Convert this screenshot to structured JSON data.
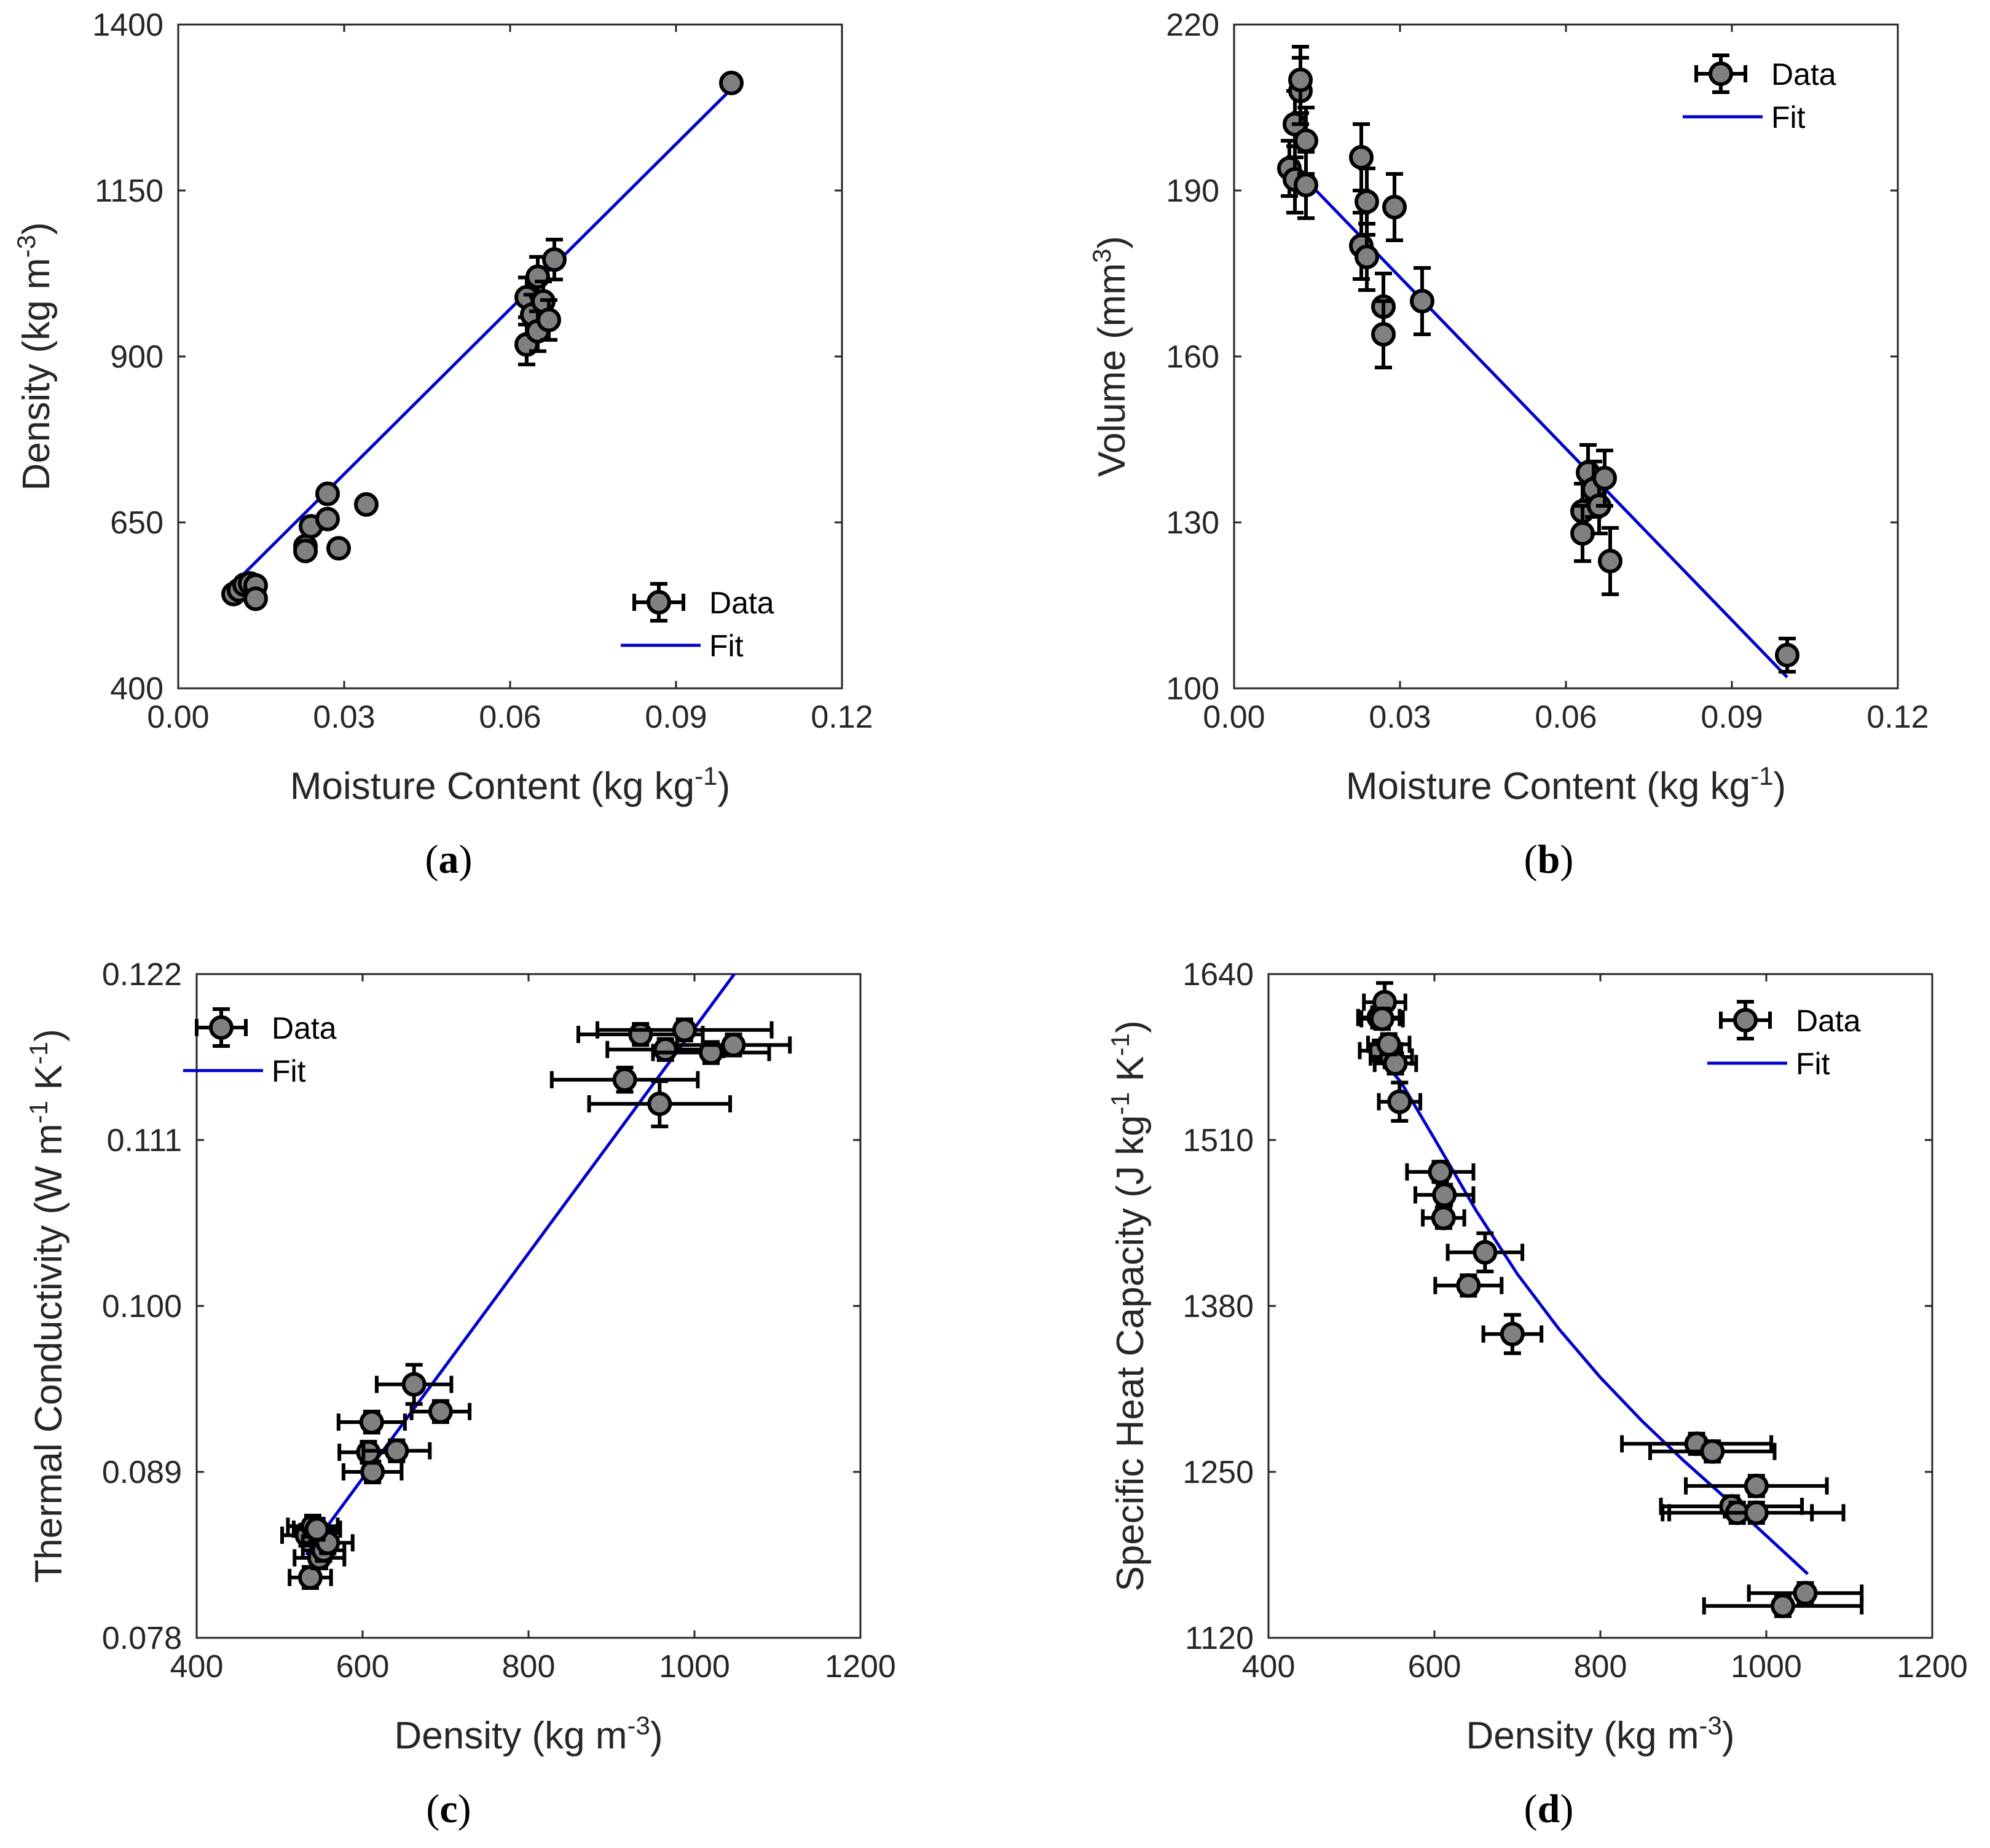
{
  "colors": {
    "fit": "#0000cc",
    "marker_fill": "#808080",
    "marker_edge": "#000000",
    "axis": "#262626"
  },
  "chart_data": [
    {
      "panel": "(a)",
      "panel_letter": "a",
      "type": "scatter",
      "xlabel": "Moisture Content (kg kg",
      "xlabel_sup": "-1",
      "xlabel_tail": ")",
      "ylabel": "Density (kg m",
      "ylabel_sup": "-3",
      "ylabel_tail": ")",
      "xlim": [
        0,
        0.12
      ],
      "ylim": [
        400,
        1400
      ],
      "xticks": [
        "0.00",
        "0.03",
        "0.06",
        "0.09",
        "0.12"
      ],
      "yticks": [
        "400",
        "650",
        "900",
        "1150",
        "1400"
      ],
      "legend": {
        "position": "bottom-right",
        "data_label": "Data",
        "fit_label": "Fit"
      },
      "series": [
        {
          "name": "Data",
          "points": [
            {
              "x": 0.01,
              "y": 542,
              "ey": 10
            },
            {
              "x": 0.011,
              "y": 548,
              "ey": 10
            },
            {
              "x": 0.012,
              "y": 556,
              "ey": 10
            },
            {
              "x": 0.013,
              "y": 558,
              "ey": 10
            },
            {
              "x": 0.014,
              "y": 555,
              "ey": 10
            },
            {
              "x": 0.014,
              "y": 535,
              "ey": 10
            },
            {
              "x": 0.023,
              "y": 614,
              "ey": 10
            },
            {
              "x": 0.023,
              "y": 607,
              "ey": 10
            },
            {
              "x": 0.024,
              "y": 644,
              "ey": 10
            },
            {
              "x": 0.027,
              "y": 655,
              "ey": 10
            },
            {
              "x": 0.027,
              "y": 693,
              "ey": 10
            },
            {
              "x": 0.029,
              "y": 611,
              "ey": 10
            },
            {
              "x": 0.034,
              "y": 677,
              "ey": 10
            },
            {
              "x": 0.063,
              "y": 918,
              "ey": 30
            },
            {
              "x": 0.063,
              "y": 989,
              "ey": 30
            },
            {
              "x": 0.064,
              "y": 963,
              "ey": 30
            },
            {
              "x": 0.065,
              "y": 1020,
              "ey": 30
            },
            {
              "x": 0.065,
              "y": 938,
              "ey": 30
            },
            {
              "x": 0.066,
              "y": 983,
              "ey": 30
            },
            {
              "x": 0.067,
              "y": 955,
              "ey": 30
            },
            {
              "x": 0.068,
              "y": 1046,
              "ey": 30
            },
            {
              "x": 0.1,
              "y": 1312,
              "ey": 10
            }
          ]
        },
        {
          "name": "Fit",
          "x": [
            0.01,
            0.1
          ],
          "y": [
            557,
            1303
          ]
        }
      ]
    },
    {
      "panel": "(b)",
      "panel_letter": "b",
      "type": "scatter",
      "xlabel": "Moisture Content (kg kg",
      "xlabel_sup": "-1",
      "xlabel_tail": ")",
      "ylabel": "Volume (mm",
      "ylabel_sup": "3",
      "ylabel_tail": ")",
      "xlim": [
        0,
        0.12
      ],
      "ylim": [
        100,
        220
      ],
      "xticks": [
        "0.00",
        "0.03",
        "0.06",
        "0.09",
        "0.12"
      ],
      "yticks": [
        "100",
        "130",
        "160",
        "190",
        "220"
      ],
      "legend": {
        "position": "top-right",
        "data_label": "Data",
        "fit_label": "Fit"
      },
      "series": [
        {
          "name": "Data",
          "points": [
            {
              "x": 0.01,
              "y": 194,
              "ey": 5
            },
            {
              "x": 0.011,
              "y": 202,
              "ey": 6
            },
            {
              "x": 0.011,
              "y": 192,
              "ey": 6
            },
            {
              "x": 0.012,
              "y": 208,
              "ey": 6
            },
            {
              "x": 0.012,
              "y": 210,
              "ey": 6
            },
            {
              "x": 0.013,
              "y": 199,
              "ey": 6
            },
            {
              "x": 0.013,
              "y": 191,
              "ey": 6
            },
            {
              "x": 0.023,
              "y": 180,
              "ey": 6
            },
            {
              "x": 0.023,
              "y": 196,
              "ey": 6
            },
            {
              "x": 0.024,
              "y": 188,
              "ey": 6
            },
            {
              "x": 0.024,
              "y": 178,
              "ey": 6
            },
            {
              "x": 0.027,
              "y": 169,
              "ey": 6
            },
            {
              "x": 0.027,
              "y": 164,
              "ey": 6
            },
            {
              "x": 0.029,
              "y": 187,
              "ey": 6
            },
            {
              "x": 0.034,
              "y": 170,
              "ey": 6
            },
            {
              "x": 0.063,
              "y": 132,
              "ey": 5
            },
            {
              "x": 0.063,
              "y": 128,
              "ey": 5
            },
            {
              "x": 0.064,
              "y": 139,
              "ey": 5
            },
            {
              "x": 0.065,
              "y": 136,
              "ey": 5
            },
            {
              "x": 0.066,
              "y": 133,
              "ey": 5
            },
            {
              "x": 0.067,
              "y": 138,
              "ey": 5
            },
            {
              "x": 0.068,
              "y": 123,
              "ey": 6
            },
            {
              "x": 0.1,
              "y": 106,
              "ey": 3
            }
          ]
        },
        {
          "name": "Fit",
          "x": [
            0.01,
            0.1
          ],
          "y": [
            195,
            102
          ]
        }
      ]
    },
    {
      "panel": "(c)",
      "panel_letter": "c",
      "type": "scatter",
      "xlabel": "Density (kg m",
      "xlabel_sup": "-3",
      "xlabel_tail": ")",
      "ylabel": "Thermal Conductivity (W m",
      "ylabel_sup": "-1",
      "ylabel_mid": " K",
      "ylabel_sup2": "-1",
      "ylabel_tail": ")",
      "xlim": [
        400,
        1200
      ],
      "ylim": [
        0.078,
        0.122
      ],
      "xticks": [
        "400",
        "600",
        "800",
        "1000",
        "1200"
      ],
      "yticks": [
        "0.078",
        "0.089",
        "0.100",
        "0.111",
        "0.122"
      ],
      "legend": {
        "position": "top-left",
        "data_label": "Data",
        "fit_label": "Fit"
      },
      "series": [
        {
          "name": "Data",
          "points": [
            {
              "x": 533,
              "y": 0.0848,
              "ex": 30,
              "ey": 0.0007
            },
            {
              "x": 540,
              "y": 0.0854,
              "ex": 30,
              "ey": 0.0007
            },
            {
              "x": 537,
              "y": 0.082,
              "ex": 25,
              "ey": 0.0007
            },
            {
              "x": 548,
              "y": 0.0833,
              "ex": 30,
              "ey": 0.0007
            },
            {
              "x": 553,
              "y": 0.0838,
              "ex": 25,
              "ey": 0.0007
            },
            {
              "x": 558,
              "y": 0.0843,
              "ex": 30,
              "ey": 0.0007
            },
            {
              "x": 545,
              "y": 0.0852,
              "ex": 28,
              "ey": 0.0007
            },
            {
              "x": 612,
              "y": 0.089,
              "ex": 35,
              "ey": 0.0007
            },
            {
              "x": 607,
              "y": 0.0903,
              "ex": 35,
              "ey": 0.0007
            },
            {
              "x": 611,
              "y": 0.0923,
              "ex": 40,
              "ey": 0.0007
            },
            {
              "x": 641,
              "y": 0.0904,
              "ex": 40,
              "ey": 0.0007
            },
            {
              "x": 662,
              "y": 0.0948,
              "ex": 45,
              "ey": 0.0013
            },
            {
              "x": 694,
              "y": 0.093,
              "ex": 35,
              "ey": 0.0007
            },
            {
              "x": 916,
              "y": 0.115,
              "ex": 88,
              "ey": 0.0008
            },
            {
              "x": 958,
              "y": 0.1134,
              "ex": 85,
              "ey": 0.0015
            },
            {
              "x": 935,
              "y": 0.118,
              "ex": 75,
              "ey": 0.0007
            },
            {
              "x": 988,
              "y": 0.1183,
              "ex": 105,
              "ey": 0.0007
            },
            {
              "x": 965,
              "y": 0.117,
              "ex": 70,
              "ey": 0.0007
            },
            {
              "x": 1020,
              "y": 0.1168,
              "ex": 70,
              "ey": 0.0007
            },
            {
              "x": 1047,
              "y": 0.1173,
              "ex": 68,
              "ey": 0.0007
            }
          ]
        },
        {
          "name": "Fit",
          "x": [
            532,
            1048
          ],
          "y": [
            0.0835,
            0.122
          ]
        }
      ]
    },
    {
      "panel": "(d)",
      "panel_letter": "d",
      "type": "scatter",
      "xlabel": "Density (kg m",
      "xlabel_sup": "-3",
      "xlabel_tail": ")",
      "ylabel": "Specific Heat Capacity (J kg",
      "ylabel_sup": "-1",
      "ylabel_mid": " K",
      "ylabel_sup2": "-1",
      "ylabel_tail": ")",
      "xlim": [
        400,
        1200
      ],
      "ylim": [
        1120,
        1640
      ],
      "xticks": [
        "400",
        "600",
        "800",
        "1000",
        "1200"
      ],
      "yticks": [
        "1120",
        "1250",
        "1380",
        "1510",
        "1640"
      ],
      "legend": {
        "position": "top-right",
        "data_label": "Data",
        "fit_label": "Fit"
      },
      "series": [
        {
          "name": "Data",
          "points": [
            {
              "x": 533,
              "y": 1606,
              "ex": 25,
              "ey": 8
            },
            {
              "x": 540,
              "y": 1618,
              "ex": 25,
              "ey": 15
            },
            {
              "x": 537,
              "y": 1605,
              "ex": 25,
              "ey": 8
            },
            {
              "x": 535,
              "y": 1580,
              "ex": 25,
              "ey": 8
            },
            {
              "x": 548,
              "y": 1575,
              "ex": 25,
              "ey": 8
            },
            {
              "x": 553,
              "y": 1570,
              "ex": 25,
              "ey": 8
            },
            {
              "x": 558,
              "y": 1540,
              "ex": 25,
              "ey": 15
            },
            {
              "x": 545,
              "y": 1585,
              "ex": 25,
              "ey": 8
            },
            {
              "x": 607,
              "y": 1485,
              "ex": 40,
              "ey": 8
            },
            {
              "x": 612,
              "y": 1467,
              "ex": 35,
              "ey": 8
            },
            {
              "x": 611,
              "y": 1449,
              "ex": 25,
              "ey": 8
            },
            {
              "x": 661,
              "y": 1422,
              "ex": 45,
              "ey": 15
            },
            {
              "x": 641,
              "y": 1396,
              "ex": 40,
              "ey": 8
            },
            {
              "x": 694,
              "y": 1358,
              "ex": 35,
              "ey": 15
            },
            {
              "x": 916,
              "y": 1272,
              "ex": 90,
              "ey": 8
            },
            {
              "x": 935,
              "y": 1266,
              "ex": 75,
              "ey": 8
            },
            {
              "x": 988,
              "y": 1239,
              "ex": 85,
              "ey": 8
            },
            {
              "x": 958,
              "y": 1223,
              "ex": 85,
              "ey": 8
            },
            {
              "x": 965,
              "y": 1218,
              "ex": 90,
              "ey": 8
            },
            {
              "x": 988,
              "y": 1218,
              "ex": 105,
              "ey": 8
            },
            {
              "x": 1047,
              "y": 1155,
              "ex": 68,
              "ey": 8
            },
            {
              "x": 1020,
              "y": 1145,
              "ex": 95,
              "ey": 8
            }
          ]
        },
        {
          "name": "Fit",
          "x": [
            530,
            560,
            600,
            650,
            700,
            750,
            800,
            850,
            900,
            950,
            1000,
            1050
          ],
          "y": [
            1578,
            1555,
            1511,
            1455,
            1405,
            1362,
            1324,
            1290,
            1259,
            1230,
            1200,
            1170
          ]
        }
      ]
    }
  ]
}
